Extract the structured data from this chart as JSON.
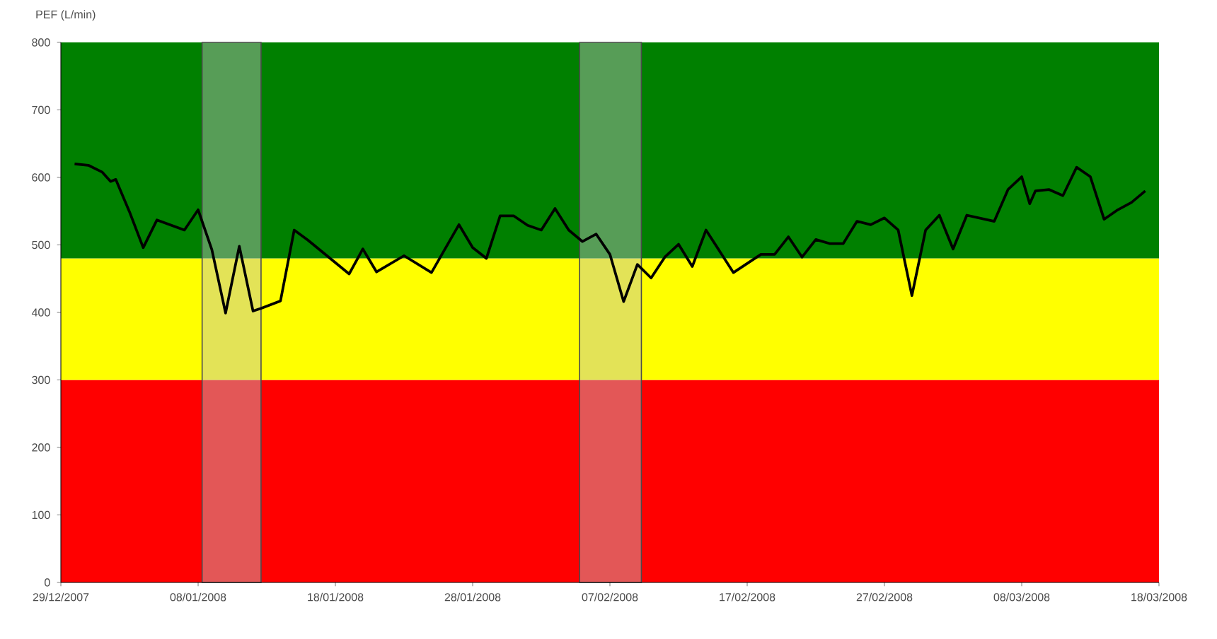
{
  "chart_data": {
    "type": "line",
    "ylabel": "PEF (L/min)",
    "xlim": [
      "2007-12-29",
      "2008-03-18"
    ],
    "xticks": [
      {
        "value": "2007-12-29",
        "label": "29/12/2007"
      },
      {
        "value": "2008-01-08",
        "label": "08/01/2008"
      },
      {
        "value": "2008-01-18",
        "label": "18/01/2008"
      },
      {
        "value": "2008-01-28",
        "label": "28/01/2008"
      },
      {
        "value": "2008-02-07",
        "label": "07/02/2008"
      },
      {
        "value": "2008-02-17",
        "label": "17/02/2008"
      },
      {
        "value": "2008-02-27",
        "label": "27/02/2008"
      },
      {
        "value": "2008-03-08",
        "label": "08/03/2008"
      },
      {
        "value": "2008-03-18",
        "label": "18/03/2008"
      }
    ],
    "ylim": [
      0,
      800
    ],
    "yticks": [
      0,
      100,
      200,
      300,
      400,
      500,
      600,
      700,
      800
    ],
    "grid": false,
    "line_style": "solid",
    "series": [
      {
        "color": "#000000",
        "x": [
          "2007-12-30",
          "2007-12-31",
          "2008-01-01",
          "2008-01-01T15:00",
          "2008-01-02",
          "2008-01-03",
          "2008-01-04",
          "2008-01-05",
          "2008-01-07",
          "2008-01-08",
          "2008-01-09",
          "2008-01-10",
          "2008-01-11",
          "2008-01-12",
          "2008-01-12T14:00",
          "2008-01-14",
          "2008-01-15",
          "2008-01-16",
          "2008-01-19",
          "2008-01-20",
          "2008-01-21",
          "2008-01-23",
          "2008-01-25",
          "2008-01-27",
          "2008-01-28",
          "2008-01-29",
          "2008-01-30",
          "2008-01-31",
          "2008-02-01",
          "2008-02-02",
          "2008-02-03",
          "2008-02-04",
          "2008-02-05",
          "2008-02-06",
          "2008-02-07",
          "2008-02-08",
          "2008-02-09",
          "2008-02-10",
          "2008-02-11",
          "2008-02-12",
          "2008-02-13",
          "2008-02-14",
          "2008-02-16",
          "2008-02-18",
          "2008-02-19",
          "2008-02-20",
          "2008-02-21",
          "2008-02-22",
          "2008-02-23",
          "2008-02-24",
          "2008-02-25",
          "2008-02-26",
          "2008-02-27",
          "2008-02-28",
          "2008-02-29",
          "2008-03-01",
          "2008-03-02",
          "2008-03-03",
          "2008-03-04",
          "2008-03-06",
          "2008-03-07",
          "2008-03-08",
          "2008-03-08T14:00",
          "2008-03-09",
          "2008-03-10",
          "2008-03-11",
          "2008-03-12",
          "2008-03-13",
          "2008-03-14",
          "2008-03-15",
          "2008-03-16",
          "2008-03-17"
        ],
        "values": [
          620,
          618,
          608,
          594,
          597,
          549,
          496,
          537,
          522,
          552,
          493,
          399,
          498,
          402,
          406,
          417,
          522,
          507,
          457,
          494,
          460,
          484,
          459,
          530,
          496,
          480,
          543,
          543,
          529,
          522,
          554,
          522,
          505,
          516,
          486,
          416,
          471,
          451,
          482,
          501,
          468,
          522,
          459,
          486,
          486,
          512,
          482,
          508,
          502,
          502,
          535,
          530,
          540,
          522,
          425,
          522,
          544,
          494,
          544,
          535,
          582,
          601,
          561,
          580,
          582,
          573,
          615,
          601,
          538,
          552,
          563,
          580
        ]
      }
    ],
    "bands": [
      {
        "axis": "y",
        "from": 0,
        "to": 300,
        "color": "#ff0000"
      },
      {
        "axis": "y",
        "from": 300,
        "to": 480,
        "color": "#ffff00"
      },
      {
        "axis": "y",
        "from": 480,
        "to": 800,
        "color": "#008000"
      },
      {
        "axis": "x",
        "from": "2008-01-08T07:00",
        "to": "2008-01-12T14:00",
        "color": "#c0c0c0"
      },
      {
        "axis": "x",
        "from": "2008-02-04T19:00",
        "to": "2008-02-09T07:00",
        "color": "#c0c0c0"
      }
    ]
  }
}
